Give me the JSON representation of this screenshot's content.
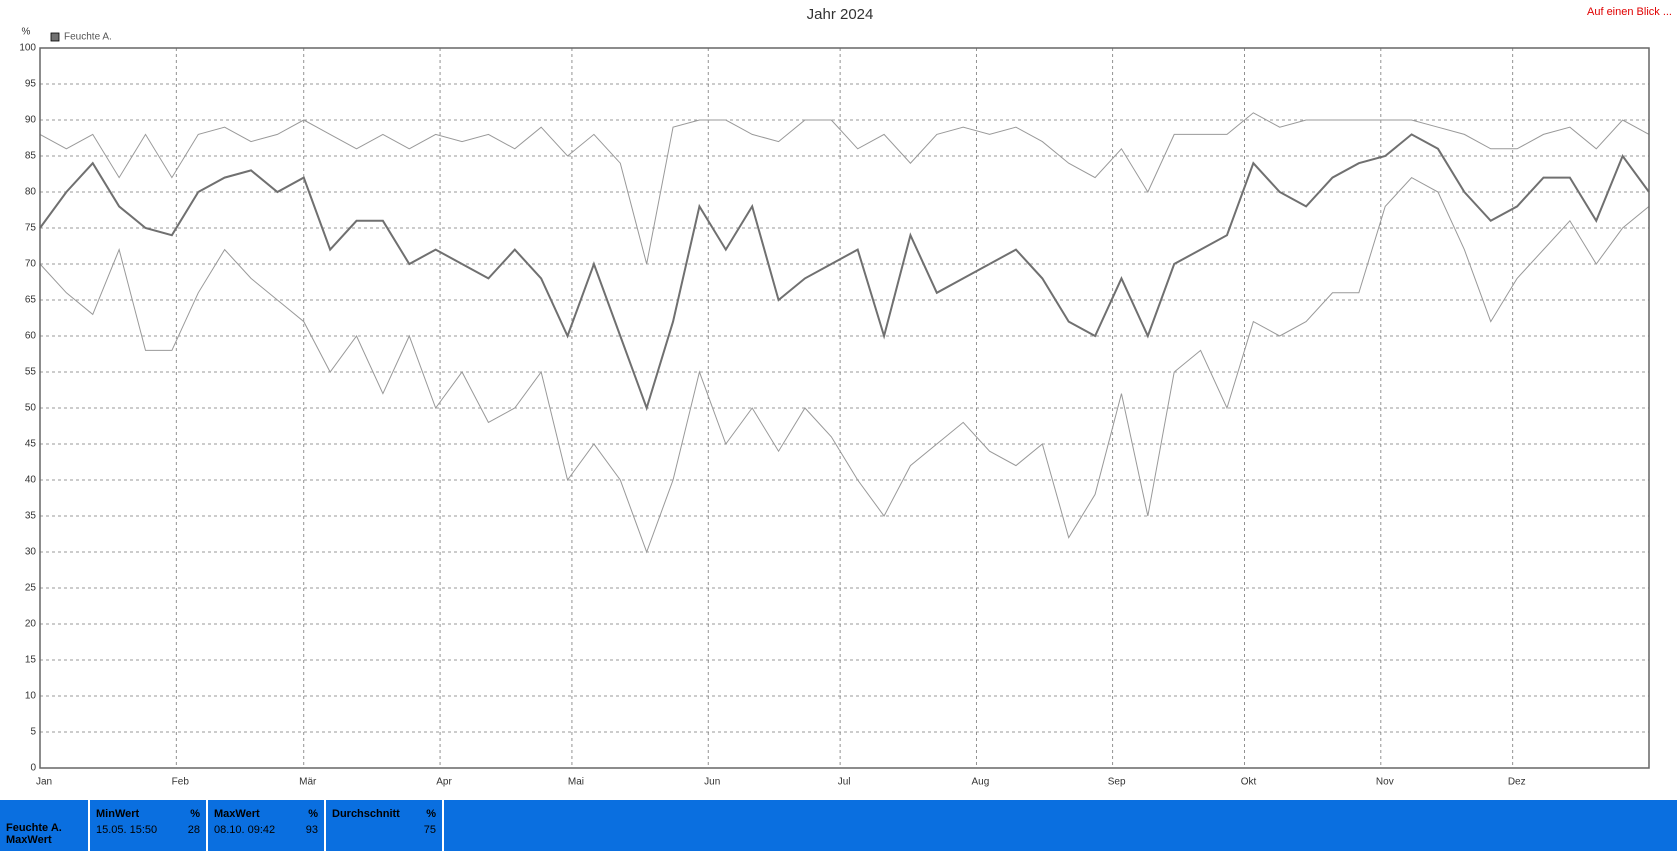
{
  "chart_data": {
    "type": "line",
    "title": "Jahr 2024",
    "corner_link": "Auf einen Blick ...",
    "y_unit": "%",
    "x": [
      0,
      6,
      12,
      18,
      24,
      30,
      36,
      42,
      48,
      54,
      60,
      66,
      72,
      78,
      84,
      90,
      96,
      102,
      108,
      114,
      120,
      126,
      132,
      138,
      144,
      150,
      156,
      162,
      168,
      174,
      180,
      186,
      192,
      198,
      204,
      210,
      216,
      222,
      228,
      234,
      240,
      246,
      252,
      258,
      264,
      270,
      276,
      282,
      288,
      294,
      300,
      306,
      312,
      318,
      324,
      330,
      336,
      342,
      348,
      354,
      360,
      366
    ],
    "series": [
      {
        "color": "#999999",
        "values": [
          88,
          86,
          88,
          82,
          88,
          82,
          88,
          89,
          87,
          88,
          90,
          88,
          86,
          88,
          86,
          88,
          87,
          88,
          86,
          89,
          85,
          88,
          84,
          70,
          89,
          90,
          90,
          88,
          87,
          90,
          90,
          86,
          88,
          84,
          88,
          89,
          88,
          89,
          87,
          84,
          82,
          86,
          80,
          88,
          88,
          88,
          91,
          89,
          90,
          90,
          90,
          90,
          90,
          89,
          88,
          86,
          86,
          88,
          89,
          86,
          90,
          88
        ]
      },
      {
        "name": "Feuchte A.",
        "color": "#707070",
        "values": [
          75,
          80,
          84,
          78,
          75,
          74,
          80,
          82,
          83,
          80,
          82,
          72,
          76,
          76,
          70,
          72,
          70,
          68,
          72,
          68,
          60,
          70,
          60,
          50,
          62,
          78,
          72,
          78,
          65,
          68,
          70,
          72,
          60,
          74,
          66,
          68,
          70,
          72,
          68,
          62,
          60,
          68,
          60,
          70,
          72,
          74,
          84,
          80,
          78,
          82,
          84,
          85,
          88,
          86,
          80,
          76,
          78,
          82,
          82,
          76,
          85,
          80
        ]
      },
      {
        "color": "#999999",
        "values": [
          70,
          66,
          63,
          72,
          58,
          58,
          66,
          72,
          68,
          65,
          62,
          55,
          60,
          52,
          60,
          50,
          55,
          48,
          50,
          55,
          40,
          45,
          40,
          30,
          40,
          55,
          45,
          50,
          44,
          50,
          46,
          40,
          35,
          42,
          45,
          48,
          44,
          42,
          45,
          32,
          38,
          52,
          35,
          55,
          58,
          50,
          62,
          60,
          62,
          66,
          66,
          78,
          82,
          80,
          72,
          62,
          68,
          72,
          76,
          70,
          75,
          78
        ]
      }
    ],
    "xlim": [
      0,
      366
    ],
    "xticks": [
      {
        "value": 0,
        "label": "Jan"
      },
      {
        "value": 31,
        "label": "Feb"
      },
      {
        "value": 60,
        "label": "Mär"
      },
      {
        "value": 91,
        "label": "Apr"
      },
      {
        "value": 121,
        "label": "Mai"
      },
      {
        "value": 152,
        "label": "Jun"
      },
      {
        "value": 182,
        "label": "Jul"
      },
      {
        "value": 213,
        "label": "Aug"
      },
      {
        "value": 244,
        "label": "Sep"
      },
      {
        "value": 274,
        "label": "Okt"
      },
      {
        "value": 305,
        "label": "Nov"
      },
      {
        "value": 335,
        "label": "Dez"
      }
    ],
    "ylim": [
      0,
      100
    ],
    "yticks": [
      0,
      5,
      10,
      15,
      20,
      25,
      30,
      35,
      40,
      45,
      50,
      55,
      60,
      65,
      70,
      75,
      80,
      85,
      90,
      95,
      100
    ],
    "grid": true
  },
  "summary": {
    "row_label": "Feuchte A.",
    "row_sublabel": "MaxWert",
    "columns": [
      {
        "header": "MinWert",
        "unit": "%",
        "time": "15.05.  15:50",
        "value": "28"
      },
      {
        "header": "MaxWert",
        "unit": "%",
        "time": "08.10.  09:42",
        "value": "93"
      },
      {
        "header": "Durchschnitt",
        "unit": "%",
        "time": "",
        "value": "75"
      }
    ]
  }
}
